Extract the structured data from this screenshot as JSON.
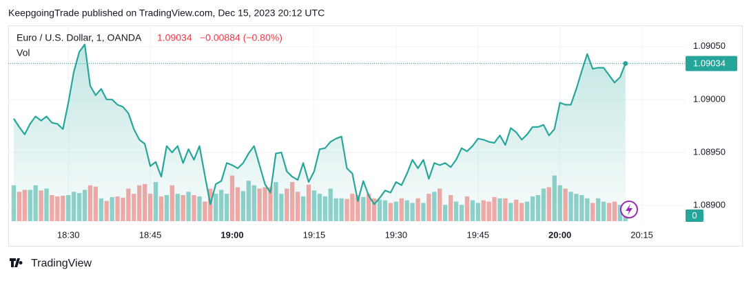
{
  "header": {
    "text": "KeepgoingTrade published on TradingView.com, Dec 15, 2023 20:12 UTC"
  },
  "chart_data": {
    "type": "line",
    "symbol": "Euro / U.S. Dollar, 1, OANDA",
    "change": "−0.00884 (−0.80%)",
    "volume_label": "Vol",
    "volume_tag": 0,
    "grid": true,
    "x": [
      "18:20",
      "18:21",
      "18:22",
      "18:23",
      "18:24",
      "18:25",
      "18:26",
      "18:27",
      "18:28",
      "18:29",
      "18:30",
      "18:31",
      "18:32",
      "18:33",
      "18:34",
      "18:35",
      "18:36",
      "18:37",
      "18:38",
      "18:39",
      "18:40",
      "18:41",
      "18:42",
      "18:43",
      "18:44",
      "18:45",
      "18:46",
      "18:47",
      "18:48",
      "18:49",
      "18:50",
      "18:51",
      "18:52",
      "18:53",
      "18:54",
      "18:55",
      "18:56",
      "18:57",
      "18:58",
      "18:59",
      "19:00",
      "19:01",
      "19:02",
      "19:03",
      "19:04",
      "19:05",
      "19:06",
      "19:07",
      "19:08",
      "19:09",
      "19:10",
      "19:11",
      "19:12",
      "19:13",
      "19:14",
      "19:15",
      "19:16",
      "19:17",
      "19:18",
      "19:19",
      "19:20",
      "19:21",
      "19:22",
      "19:23",
      "19:24",
      "19:25",
      "19:26",
      "19:27",
      "19:28",
      "19:29",
      "19:30",
      "19:31",
      "19:32",
      "19:33",
      "19:34",
      "19:35",
      "19:36",
      "19:37",
      "19:38",
      "19:39",
      "19:40",
      "19:41",
      "19:42",
      "19:43",
      "19:44",
      "19:45",
      "19:46",
      "19:47",
      "19:48",
      "19:49",
      "19:50",
      "19:51",
      "19:52",
      "19:53",
      "19:54",
      "19:55",
      "19:56",
      "19:57",
      "19:58",
      "19:59",
      "20:00",
      "20:01",
      "20:02",
      "20:03",
      "20:04",
      "20:05",
      "20:06",
      "20:07",
      "20:08",
      "20:09",
      "20:10",
      "20:11",
      "20:12"
    ],
    "xlim": [
      "18:19",
      "20:23"
    ],
    "xticks": [
      "18:30",
      "18:45",
      "19:00",
      "19:15",
      "19:30",
      "19:45",
      "20:00",
      "20:15"
    ],
    "ylim": [
      1.08885,
      1.0907
    ],
    "yticks": [
      {
        "value": 1.089,
        "label": "1.08900"
      },
      {
        "value": 1.0895,
        "label": "1.08950"
      },
      {
        "value": 1.09,
        "label": "1.09000"
      },
      {
        "value": 1.0905,
        "label": "1.09050"
      }
    ],
    "y2lim": [
      0,
      300
    ],
    "series": [
      {
        "name": "Euro / U.S. Dollar, 1, OANDA",
        "color": "#26a69a",
        "values": [
          1.08982,
          1.08974,
          1.08967,
          1.08977,
          1.08984,
          1.0898,
          1.08984,
          1.08978,
          1.08977,
          1.08972,
          1.08997,
          1.09026,
          1.09045,
          1.09052,
          1.09013,
          1.09004,
          1.0901,
          1.09,
          1.09,
          1.08995,
          1.08993,
          1.08987,
          1.08972,
          1.08962,
          1.08958,
          1.08937,
          1.08941,
          1.08927,
          1.08956,
          1.0895,
          1.08956,
          1.0894,
          1.08953,
          1.08943,
          1.08956,
          1.08928,
          1.08901,
          1.0892,
          1.08923,
          1.0894,
          1.08938,
          1.08935,
          1.0894,
          1.08949,
          1.08956,
          1.08938,
          1.0892,
          1.08912,
          1.08949,
          1.0895,
          1.08932,
          1.08927,
          1.08924,
          1.0894,
          1.08922,
          1.08932,
          1.08953,
          1.08954,
          1.0896,
          1.08963,
          1.08965,
          1.08935,
          1.0893,
          1.08904,
          1.08923,
          1.08909,
          1.08901,
          1.08907,
          1.08914,
          1.08912,
          1.08922,
          1.08919,
          1.0893,
          1.08943,
          1.08935,
          1.08943,
          1.08925,
          1.0894,
          1.08938,
          1.0894,
          1.08936,
          1.08943,
          1.08954,
          1.08951,
          1.08956,
          1.08963,
          1.08962,
          1.0896,
          1.08959,
          1.08966,
          1.08957,
          1.08973,
          1.08969,
          1.08962,
          1.08967,
          1.08974,
          1.08974,
          1.08976,
          1.08966,
          1.08972,
          1.08997,
          1.08995,
          1.08995,
          1.0901,
          1.09027,
          1.09043,
          1.09029,
          1.0903,
          1.0903,
          1.09023,
          1.09016,
          1.09021,
          1.09034
        ]
      },
      {
        "name": "Vol",
        "axis": "y2",
        "up_color": "#92d2cc",
        "down_color": "#f7a9a7",
        "values": [
          55,
          45,
          48,
          48,
          55,
          47,
          50,
          40,
          38,
          39,
          40,
          45,
          43,
          48,
          55,
          53,
          35,
          31,
          37,
          38,
          36,
          50,
          42,
          55,
          57,
          42,
          60,
          38,
          40,
          55,
          42,
          40,
          45,
          40,
          38,
          30,
          50,
          42,
          48,
          42,
          70,
          52,
          46,
          62,
          55,
          50,
          52,
          52,
          60,
          42,
          50,
          60,
          45,
          38,
          56,
          47,
          42,
          38,
          50,
          35,
          35,
          34,
          42,
          40,
          37,
          42,
          35,
          33,
          32,
          28,
          30,
          35,
          32,
          28,
          35,
          28,
          42,
          45,
          50,
          25,
          40,
          30,
          25,
          38,
          32,
          28,
          32,
          30,
          37,
          35,
          35,
          28,
          33,
          28,
          30,
          38,
          40,
          50,
          52,
          70,
          55,
          50,
          45,
          42,
          40,
          35,
          28,
          35,
          30,
          28,
          30,
          25,
          18
        ]
      }
    ]
  },
  "footer": {
    "brand": "TradingView"
  }
}
